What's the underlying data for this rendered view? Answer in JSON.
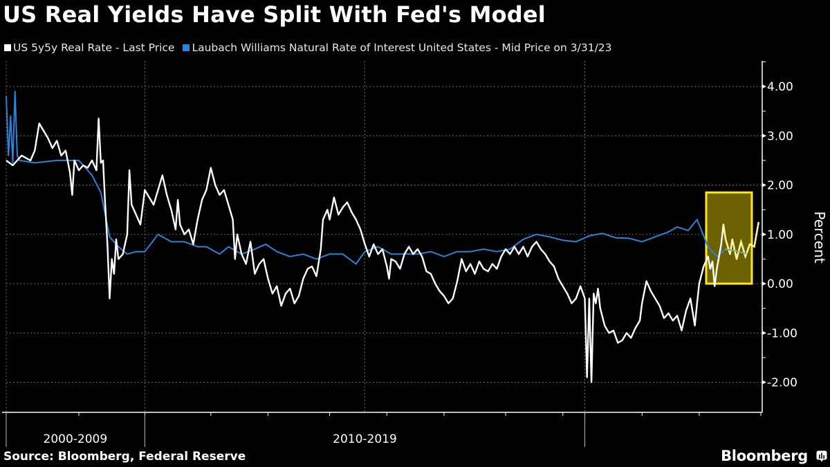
{
  "chart_data": {
    "type": "line",
    "title": "US Real Yields Have Split With Fed's Model",
    "xlabel": "",
    "ylabel": "Percent",
    "ylim": [
      -2.5,
      4.5
    ],
    "xlim": [
      2006.85,
      2024.0
    ],
    "yticks": [
      4,
      3,
      2,
      1,
      0,
      -1,
      -2
    ],
    "ytick_labels": [
      "4.00",
      "3.00",
      "2.00",
      "1.00",
      "0.00",
      "-1.00",
      "-2.00"
    ],
    "x_minor_ticks": [
      2008.5,
      2010,
      2011.5,
      2012.8,
      2014.2,
      2015.5,
      2016.8,
      2018.2,
      2019.5,
      2020,
      2021.3,
      2022.6,
      2024
    ],
    "x_decade_boundaries": [
      2006.85,
      2010,
      2020
    ],
    "x_category_labels": [
      {
        "label": "2000-2009",
        "at": 2008.42
      },
      {
        "label": "2010-2019",
        "at": 2015
      }
    ],
    "grid": true,
    "legend_position": "top-left",
    "series": [
      {
        "name": "US 5y5y Real Rate - Last Price",
        "color": "#ffffff",
        "points": [
          [
            2006.85,
            2.5
          ],
          [
            2007.0,
            2.4
          ],
          [
            2007.2,
            2.6
          ],
          [
            2007.4,
            2.5
          ],
          [
            2007.5,
            2.7
          ],
          [
            2007.6,
            3.25
          ],
          [
            2007.7,
            3.1
          ],
          [
            2007.8,
            2.95
          ],
          [
            2007.9,
            2.75
          ],
          [
            2008.0,
            2.9
          ],
          [
            2008.1,
            2.6
          ],
          [
            2008.2,
            2.7
          ],
          [
            2008.3,
            2.25
          ],
          [
            2008.35,
            1.8
          ],
          [
            2008.4,
            2.5
          ],
          [
            2008.5,
            2.3
          ],
          [
            2008.6,
            2.4
          ],
          [
            2008.7,
            2.35
          ],
          [
            2008.8,
            2.5
          ],
          [
            2008.9,
            2.3
          ],
          [
            2009.0,
            2.45
          ],
          [
            2008.95,
            3.35
          ],
          [
            2009.05,
            2.5
          ],
          [
            2009.1,
            1.6
          ],
          [
            2009.15,
            0.8
          ],
          [
            2009.2,
            -0.3
          ],
          [
            2009.25,
            0.5
          ],
          [
            2009.3,
            0.2
          ],
          [
            2009.35,
            0.9
          ],
          [
            2009.4,
            0.5
          ],
          [
            2009.5,
            0.6
          ],
          [
            2009.6,
            1.0
          ],
          [
            2009.65,
            2.3
          ],
          [
            2009.7,
            1.6
          ],
          [
            2009.8,
            1.4
          ],
          [
            2009.9,
            1.2
          ],
          [
            2010.0,
            1.9
          ],
          [
            2010.2,
            1.6
          ],
          [
            2010.3,
            1.9
          ],
          [
            2010.4,
            2.2
          ],
          [
            2010.5,
            1.8
          ],
          [
            2010.6,
            1.5
          ],
          [
            2010.7,
            1.1
          ],
          [
            2010.75,
            1.7
          ],
          [
            2010.8,
            1.2
          ],
          [
            2010.9,
            1.0
          ],
          [
            2011.0,
            1.1
          ],
          [
            2011.1,
            0.8
          ],
          [
            2011.2,
            1.3
          ],
          [
            2011.3,
            1.7
          ],
          [
            2011.4,
            1.9
          ],
          [
            2011.5,
            2.35
          ],
          [
            2011.6,
            2.0
          ],
          [
            2011.7,
            1.8
          ],
          [
            2011.8,
            1.9
          ],
          [
            2011.9,
            1.6
          ],
          [
            2012.0,
            1.3
          ],
          [
            2012.05,
            0.5
          ],
          [
            2012.1,
            1.0
          ],
          [
            2012.2,
            0.6
          ],
          [
            2012.3,
            0.4
          ],
          [
            2012.4,
            0.85
          ],
          [
            2012.5,
            0.2
          ],
          [
            2012.6,
            0.4
          ],
          [
            2012.7,
            0.5
          ],
          [
            2012.8,
            0.1
          ],
          [
            2012.9,
            -0.2
          ],
          [
            2013.0,
            -0.05
          ],
          [
            2013.1,
            -0.45
          ],
          [
            2013.2,
            -0.2
          ],
          [
            2013.3,
            -0.1
          ],
          [
            2013.4,
            -0.4
          ],
          [
            2013.5,
            -0.25
          ],
          [
            2013.6,
            0.1
          ],
          [
            2013.7,
            0.3
          ],
          [
            2013.8,
            0.35
          ],
          [
            2013.9,
            0.15
          ],
          [
            2014.0,
            0.7
          ],
          [
            2014.05,
            1.3
          ],
          [
            2014.15,
            1.5
          ],
          [
            2014.2,
            1.3
          ],
          [
            2014.3,
            1.75
          ],
          [
            2014.4,
            1.4
          ],
          [
            2014.5,
            1.55
          ],
          [
            2014.6,
            1.65
          ],
          [
            2014.7,
            1.45
          ],
          [
            2014.8,
            1.3
          ],
          [
            2014.9,
            1.1
          ],
          [
            2015.0,
            0.8
          ],
          [
            2015.1,
            0.55
          ],
          [
            2015.2,
            0.8
          ],
          [
            2015.3,
            0.6
          ],
          [
            2015.4,
            0.7
          ],
          [
            2015.5,
            0.35
          ],
          [
            2015.55,
            0.1
          ],
          [
            2015.6,
            0.5
          ],
          [
            2015.7,
            0.45
          ],
          [
            2015.8,
            0.3
          ],
          [
            2015.9,
            0.6
          ],
          [
            2016.0,
            0.75
          ],
          [
            2016.1,
            0.6
          ],
          [
            2016.2,
            0.7
          ],
          [
            2016.3,
            0.55
          ],
          [
            2016.4,
            0.25
          ],
          [
            2016.5,
            0.2
          ],
          [
            2016.6,
            0.0
          ],
          [
            2016.7,
            -0.15
          ],
          [
            2016.8,
            -0.25
          ],
          [
            2016.9,
            -0.4
          ],
          [
            2017.0,
            -0.3
          ],
          [
            2017.1,
            0.05
          ],
          [
            2017.2,
            0.5
          ],
          [
            2017.3,
            0.25
          ],
          [
            2017.4,
            0.4
          ],
          [
            2017.5,
            0.2
          ],
          [
            2017.6,
            0.45
          ],
          [
            2017.7,
            0.3
          ],
          [
            2017.8,
            0.25
          ],
          [
            2017.9,
            0.4
          ],
          [
            2018.0,
            0.3
          ],
          [
            2018.1,
            0.55
          ],
          [
            2018.2,
            0.7
          ],
          [
            2018.3,
            0.6
          ],
          [
            2018.4,
            0.75
          ],
          [
            2018.5,
            0.6
          ],
          [
            2018.6,
            0.75
          ],
          [
            2018.7,
            0.55
          ],
          [
            2018.8,
            0.75
          ],
          [
            2018.9,
            0.85
          ],
          [
            2019.0,
            0.7
          ],
          [
            2019.1,
            0.6
          ],
          [
            2019.2,
            0.45
          ],
          [
            2019.3,
            0.35
          ],
          [
            2019.4,
            0.1
          ],
          [
            2019.5,
            -0.05
          ],
          [
            2019.6,
            -0.2
          ],
          [
            2019.7,
            -0.4
          ],
          [
            2019.8,
            -0.3
          ],
          [
            2019.9,
            -0.05
          ],
          [
            2020.0,
            -0.3
          ],
          [
            2020.05,
            -1.9
          ],
          [
            2020.1,
            -0.3
          ],
          [
            2020.15,
            -2.0
          ],
          [
            2020.2,
            -0.2
          ],
          [
            2020.25,
            -0.4
          ],
          [
            2020.3,
            -0.1
          ],
          [
            2020.35,
            -0.5
          ],
          [
            2020.45,
            -0.85
          ],
          [
            2020.55,
            -1.0
          ],
          [
            2020.65,
            -0.95
          ],
          [
            2020.75,
            -1.2
          ],
          [
            2020.85,
            -1.15
          ],
          [
            2020.95,
            -1.0
          ],
          [
            2021.05,
            -1.1
          ],
          [
            2021.15,
            -0.9
          ],
          [
            2021.25,
            -0.75
          ],
          [
            2021.3,
            -0.4
          ],
          [
            2021.4,
            0.05
          ],
          [
            2021.5,
            -0.15
          ],
          [
            2021.6,
            -0.3
          ],
          [
            2021.7,
            -0.45
          ],
          [
            2021.8,
            -0.7
          ],
          [
            2021.9,
            -0.6
          ],
          [
            2022.0,
            -0.75
          ],
          [
            2022.1,
            -0.65
          ],
          [
            2022.2,
            -0.95
          ],
          [
            2022.3,
            -0.55
          ],
          [
            2022.4,
            -0.3
          ],
          [
            2022.5,
            -0.85
          ],
          [
            2022.55,
            -0.4
          ],
          [
            2022.6,
            0.0
          ],
          [
            2022.7,
            0.35
          ],
          [
            2022.8,
            0.55
          ],
          [
            2022.85,
            0.3
          ],
          [
            2022.9,
            0.45
          ],
          [
            2022.95,
            -0.05
          ],
          [
            2023.0,
            0.3
          ],
          [
            2023.1,
            0.8
          ],
          [
            2023.15,
            1.2
          ],
          [
            2023.2,
            0.9
          ],
          [
            2023.3,
            0.6
          ],
          [
            2023.35,
            0.9
          ],
          [
            2023.45,
            0.5
          ],
          [
            2023.55,
            0.85
          ],
          [
            2023.65,
            0.55
          ],
          [
            2023.75,
            0.8
          ],
          [
            2023.85,
            0.75
          ],
          [
            2023.95,
            1.25
          ]
        ]
      },
      {
        "name": "Laubach Williams Natural Rate of Interest United States - Mid Price on 3/31/23",
        "color": "#2a84d9",
        "points": [
          [
            2006.85,
            3.8
          ],
          [
            2006.9,
            2.6
          ],
          [
            2006.95,
            3.4
          ],
          [
            2007.0,
            2.45
          ],
          [
            2007.05,
            3.9
          ],
          [
            2007.1,
            2.6
          ],
          [
            2007.15,
            2.5
          ],
          [
            2007.5,
            2.45
          ],
          [
            2008.0,
            2.5
          ],
          [
            2008.5,
            2.5
          ],
          [
            2008.8,
            2.2
          ],
          [
            2009.0,
            1.85
          ],
          [
            2009.2,
            0.95
          ],
          [
            2009.4,
            0.75
          ],
          [
            2009.6,
            0.6
          ],
          [
            2009.8,
            0.65
          ],
          [
            2010.0,
            0.65
          ],
          [
            2010.3,
            1.0
          ],
          [
            2010.6,
            0.85
          ],
          [
            2010.9,
            0.85
          ],
          [
            2011.2,
            0.75
          ],
          [
            2011.4,
            0.75
          ],
          [
            2011.7,
            0.6
          ],
          [
            2011.9,
            0.75
          ],
          [
            2012.2,
            0.6
          ],
          [
            2012.5,
            0.7
          ],
          [
            2012.75,
            0.8
          ],
          [
            2013.0,
            0.65
          ],
          [
            2013.3,
            0.55
          ],
          [
            2013.6,
            0.6
          ],
          [
            2013.9,
            0.5
          ],
          [
            2014.2,
            0.6
          ],
          [
            2014.5,
            0.6
          ],
          [
            2014.8,
            0.4
          ],
          [
            2015.0,
            0.65
          ],
          [
            2015.3,
            0.75
          ],
          [
            2015.6,
            0.6
          ],
          [
            2015.9,
            0.6
          ],
          [
            2016.2,
            0.6
          ],
          [
            2016.5,
            0.65
          ],
          [
            2016.8,
            0.55
          ],
          [
            2017.1,
            0.65
          ],
          [
            2017.4,
            0.65
          ],
          [
            2017.7,
            0.7
          ],
          [
            2018.0,
            0.65
          ],
          [
            2018.3,
            0.7
          ],
          [
            2018.6,
            0.9
          ],
          [
            2018.9,
            1.0
          ],
          [
            2019.2,
            0.95
          ],
          [
            2019.5,
            0.88
          ],
          [
            2019.8,
            0.85
          ],
          [
            2020.1,
            0.97
          ],
          [
            2020.4,
            1.02
          ],
          [
            2020.7,
            0.93
          ],
          [
            2021.0,
            0.92
          ],
          [
            2021.3,
            0.85
          ],
          [
            2021.6,
            0.95
          ],
          [
            2021.9,
            1.05
          ],
          [
            2022.1,
            1.15
          ],
          [
            2022.35,
            1.08
          ],
          [
            2022.55,
            1.3
          ],
          [
            2022.8,
            0.75
          ],
          [
            2023.0,
            0.55
          ],
          [
            2023.2,
            0.7
          ],
          [
            2023.5,
            0.65
          ],
          [
            2023.7,
            0.6
          ]
        ]
      }
    ],
    "annotations": [
      {
        "type": "highlight-box",
        "x_range": [
          2023.15,
          2024.2
        ],
        "y_range": [
          0.0,
          1.85
        ],
        "stroke": "#ffe81a",
        "fill": "#6b6100"
      }
    ]
  },
  "legend": {
    "items": [
      {
        "label": "US 5y5y Real Rate - Last Price",
        "color": "#ffffff"
      },
      {
        "label": "Laubach Williams Natural Rate of Interest United States - Mid Price on 3/31/23",
        "color": "#2a84d9"
      }
    ]
  },
  "footer": {
    "source": "Source: Bloomberg, Federal Reserve",
    "brand": "Bloomberg"
  }
}
